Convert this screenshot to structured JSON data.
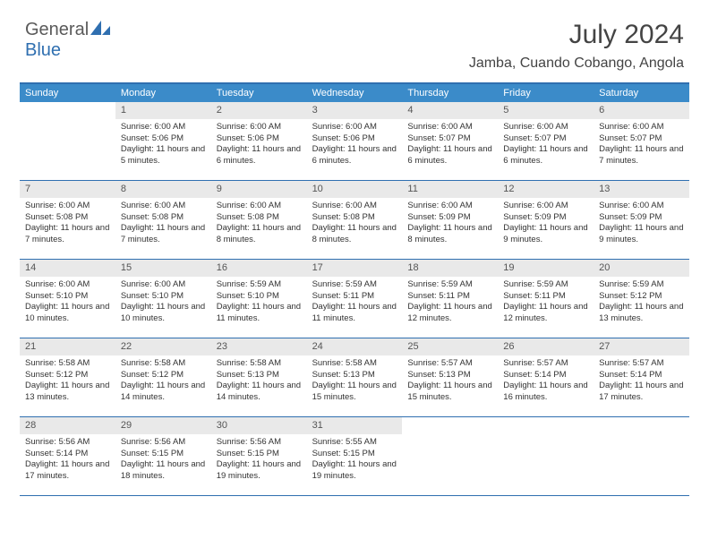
{
  "logo": {
    "text1": "General",
    "text2": "Blue"
  },
  "title": "July 2024",
  "location": "Jamba, Cuando Cobango, Angola",
  "colors": {
    "header_bg": "#3b8bc9",
    "border": "#2f6fb0",
    "daynum_bg": "#e9e9e9",
    "text": "#333333",
    "logo_gray": "#5a5a5a",
    "logo_blue": "#2f6fb0"
  },
  "dayNames": [
    "Sunday",
    "Monday",
    "Tuesday",
    "Wednesday",
    "Thursday",
    "Friday",
    "Saturday"
  ],
  "weeks": [
    [
      {
        "n": "",
        "sunrise": "",
        "sunset": "",
        "daylight": ""
      },
      {
        "n": "1",
        "sunrise": "Sunrise: 6:00 AM",
        "sunset": "Sunset: 5:06 PM",
        "daylight": "Daylight: 11 hours and 5 minutes."
      },
      {
        "n": "2",
        "sunrise": "Sunrise: 6:00 AM",
        "sunset": "Sunset: 5:06 PM",
        "daylight": "Daylight: 11 hours and 6 minutes."
      },
      {
        "n": "3",
        "sunrise": "Sunrise: 6:00 AM",
        "sunset": "Sunset: 5:06 PM",
        "daylight": "Daylight: 11 hours and 6 minutes."
      },
      {
        "n": "4",
        "sunrise": "Sunrise: 6:00 AM",
        "sunset": "Sunset: 5:07 PM",
        "daylight": "Daylight: 11 hours and 6 minutes."
      },
      {
        "n": "5",
        "sunrise": "Sunrise: 6:00 AM",
        "sunset": "Sunset: 5:07 PM",
        "daylight": "Daylight: 11 hours and 6 minutes."
      },
      {
        "n": "6",
        "sunrise": "Sunrise: 6:00 AM",
        "sunset": "Sunset: 5:07 PM",
        "daylight": "Daylight: 11 hours and 7 minutes."
      }
    ],
    [
      {
        "n": "7",
        "sunrise": "Sunrise: 6:00 AM",
        "sunset": "Sunset: 5:08 PM",
        "daylight": "Daylight: 11 hours and 7 minutes."
      },
      {
        "n": "8",
        "sunrise": "Sunrise: 6:00 AM",
        "sunset": "Sunset: 5:08 PM",
        "daylight": "Daylight: 11 hours and 7 minutes."
      },
      {
        "n": "9",
        "sunrise": "Sunrise: 6:00 AM",
        "sunset": "Sunset: 5:08 PM",
        "daylight": "Daylight: 11 hours and 8 minutes."
      },
      {
        "n": "10",
        "sunrise": "Sunrise: 6:00 AM",
        "sunset": "Sunset: 5:08 PM",
        "daylight": "Daylight: 11 hours and 8 minutes."
      },
      {
        "n": "11",
        "sunrise": "Sunrise: 6:00 AM",
        "sunset": "Sunset: 5:09 PM",
        "daylight": "Daylight: 11 hours and 8 minutes."
      },
      {
        "n": "12",
        "sunrise": "Sunrise: 6:00 AM",
        "sunset": "Sunset: 5:09 PM",
        "daylight": "Daylight: 11 hours and 9 minutes."
      },
      {
        "n": "13",
        "sunrise": "Sunrise: 6:00 AM",
        "sunset": "Sunset: 5:09 PM",
        "daylight": "Daylight: 11 hours and 9 minutes."
      }
    ],
    [
      {
        "n": "14",
        "sunrise": "Sunrise: 6:00 AM",
        "sunset": "Sunset: 5:10 PM",
        "daylight": "Daylight: 11 hours and 10 minutes."
      },
      {
        "n": "15",
        "sunrise": "Sunrise: 6:00 AM",
        "sunset": "Sunset: 5:10 PM",
        "daylight": "Daylight: 11 hours and 10 minutes."
      },
      {
        "n": "16",
        "sunrise": "Sunrise: 5:59 AM",
        "sunset": "Sunset: 5:10 PM",
        "daylight": "Daylight: 11 hours and 11 minutes."
      },
      {
        "n": "17",
        "sunrise": "Sunrise: 5:59 AM",
        "sunset": "Sunset: 5:11 PM",
        "daylight": "Daylight: 11 hours and 11 minutes."
      },
      {
        "n": "18",
        "sunrise": "Sunrise: 5:59 AM",
        "sunset": "Sunset: 5:11 PM",
        "daylight": "Daylight: 11 hours and 12 minutes."
      },
      {
        "n": "19",
        "sunrise": "Sunrise: 5:59 AM",
        "sunset": "Sunset: 5:11 PM",
        "daylight": "Daylight: 11 hours and 12 minutes."
      },
      {
        "n": "20",
        "sunrise": "Sunrise: 5:59 AM",
        "sunset": "Sunset: 5:12 PM",
        "daylight": "Daylight: 11 hours and 13 minutes."
      }
    ],
    [
      {
        "n": "21",
        "sunrise": "Sunrise: 5:58 AM",
        "sunset": "Sunset: 5:12 PM",
        "daylight": "Daylight: 11 hours and 13 minutes."
      },
      {
        "n": "22",
        "sunrise": "Sunrise: 5:58 AM",
        "sunset": "Sunset: 5:12 PM",
        "daylight": "Daylight: 11 hours and 14 minutes."
      },
      {
        "n": "23",
        "sunrise": "Sunrise: 5:58 AM",
        "sunset": "Sunset: 5:13 PM",
        "daylight": "Daylight: 11 hours and 14 minutes."
      },
      {
        "n": "24",
        "sunrise": "Sunrise: 5:58 AM",
        "sunset": "Sunset: 5:13 PM",
        "daylight": "Daylight: 11 hours and 15 minutes."
      },
      {
        "n": "25",
        "sunrise": "Sunrise: 5:57 AM",
        "sunset": "Sunset: 5:13 PM",
        "daylight": "Daylight: 11 hours and 15 minutes."
      },
      {
        "n": "26",
        "sunrise": "Sunrise: 5:57 AM",
        "sunset": "Sunset: 5:14 PM",
        "daylight": "Daylight: 11 hours and 16 minutes."
      },
      {
        "n": "27",
        "sunrise": "Sunrise: 5:57 AM",
        "sunset": "Sunset: 5:14 PM",
        "daylight": "Daylight: 11 hours and 17 minutes."
      }
    ],
    [
      {
        "n": "28",
        "sunrise": "Sunrise: 5:56 AM",
        "sunset": "Sunset: 5:14 PM",
        "daylight": "Daylight: 11 hours and 17 minutes."
      },
      {
        "n": "29",
        "sunrise": "Sunrise: 5:56 AM",
        "sunset": "Sunset: 5:15 PM",
        "daylight": "Daylight: 11 hours and 18 minutes."
      },
      {
        "n": "30",
        "sunrise": "Sunrise: 5:56 AM",
        "sunset": "Sunset: 5:15 PM",
        "daylight": "Daylight: 11 hours and 19 minutes."
      },
      {
        "n": "31",
        "sunrise": "Sunrise: 5:55 AM",
        "sunset": "Sunset: 5:15 PM",
        "daylight": "Daylight: 11 hours and 19 minutes."
      },
      {
        "n": "",
        "sunrise": "",
        "sunset": "",
        "daylight": ""
      },
      {
        "n": "",
        "sunrise": "",
        "sunset": "",
        "daylight": ""
      },
      {
        "n": "",
        "sunrise": "",
        "sunset": "",
        "daylight": ""
      }
    ]
  ]
}
